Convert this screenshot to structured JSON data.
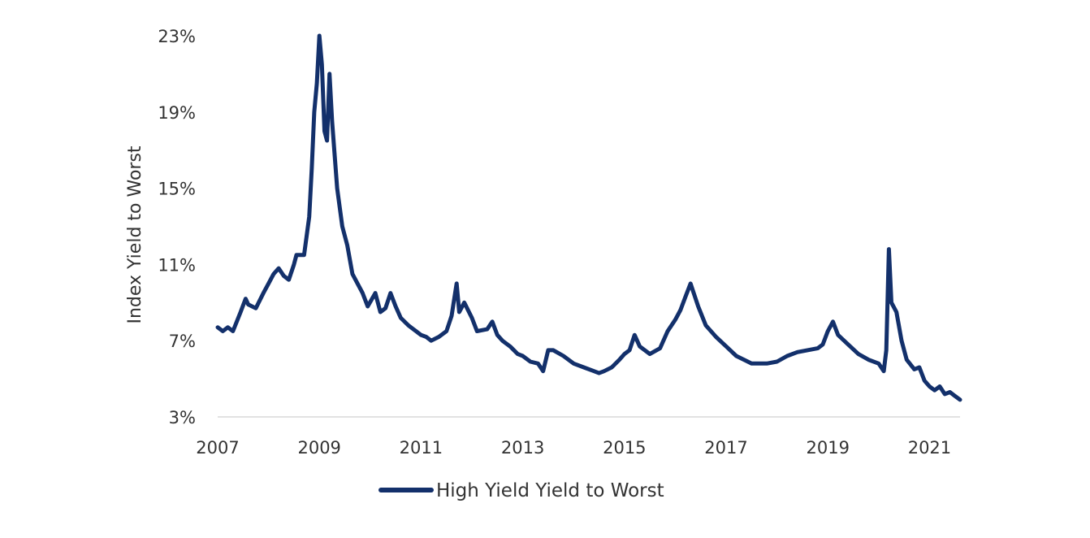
{
  "chart_data": {
    "type": "line",
    "title": "",
    "xlabel": "",
    "ylabel": "Index Yield to Worst",
    "xlim": [
      2007.0,
      2021.6
    ],
    "ylim": [
      3,
      23
    ],
    "x_ticks": [
      2007,
      2009,
      2011,
      2013,
      2015,
      2017,
      2019,
      2021
    ],
    "x_tick_labels": [
      "2007",
      "2009",
      "2011",
      "2013",
      "2015",
      "2017",
      "2019",
      "2021"
    ],
    "y_ticks": [
      3,
      7,
      11,
      15,
      19,
      23
    ],
    "y_tick_labels": [
      "3%",
      "7%",
      "11%",
      "15%",
      "19%",
      "23%"
    ],
    "grid": false,
    "legend_position": "bottom",
    "colors": {
      "series": "#13306b"
    },
    "series": [
      {
        "name": "High Yield Yield to Worst",
        "x": [
          2007.0,
          2007.1,
          2007.2,
          2007.3,
          2007.45,
          2007.55,
          2007.6,
          2007.75,
          2007.9,
          2008.0,
          2008.1,
          2008.2,
          2008.3,
          2008.4,
          2008.5,
          2008.55,
          2008.7,
          2008.8,
          2008.85,
          2008.9,
          2008.95,
          2009.0,
          2009.05,
          2009.1,
          2009.15,
          2009.2,
          2009.25,
          2009.35,
          2009.45,
          2009.55,
          2009.65,
          2009.75,
          2009.85,
          2009.95,
          2010.1,
          2010.2,
          2010.3,
          2010.4,
          2010.5,
          2010.6,
          2010.75,
          2010.9,
          2011.0,
          2011.1,
          2011.2,
          2011.35,
          2011.5,
          2011.6,
          2011.7,
          2011.75,
          2011.85,
          2012.0,
          2012.1,
          2012.3,
          2012.4,
          2012.5,
          2012.6,
          2012.75,
          2012.9,
          2013.0,
          2013.15,
          2013.3,
          2013.4,
          2013.5,
          2013.6,
          2013.8,
          2014.0,
          2014.2,
          2014.4,
          2014.5,
          2014.6,
          2014.75,
          2014.9,
          2015.0,
          2015.1,
          2015.2,
          2015.3,
          2015.5,
          2015.7,
          2015.85,
          2016.0,
          2016.1,
          2016.2,
          2016.3,
          2016.45,
          2016.6,
          2016.8,
          2017.0,
          2017.2,
          2017.5,
          2017.8,
          2018.0,
          2018.2,
          2018.4,
          2018.6,
          2018.8,
          2018.9,
          2019.0,
          2019.1,
          2019.2,
          2019.4,
          2019.6,
          2019.8,
          2020.0,
          2020.1,
          2020.15,
          2020.2,
          2020.25,
          2020.35,
          2020.45,
          2020.55,
          2020.7,
          2020.8,
          2020.9,
          2021.0,
          2021.1,
          2021.2,
          2021.3,
          2021.4,
          2021.5,
          2021.6
        ],
        "values": [
          7.7,
          7.5,
          7.7,
          7.5,
          8.5,
          9.2,
          8.9,
          8.7,
          9.5,
          10.0,
          10.5,
          10.8,
          10.4,
          10.2,
          11.0,
          11.5,
          11.5,
          13.5,
          16.0,
          19.0,
          20.5,
          23.0,
          21.5,
          18.0,
          17.5,
          21.0,
          18.5,
          15.0,
          13.0,
          12.0,
          10.5,
          10.0,
          9.5,
          8.8,
          9.5,
          8.5,
          8.7,
          9.5,
          8.8,
          8.2,
          7.8,
          7.5,
          7.3,
          7.2,
          7.0,
          7.2,
          7.5,
          8.3,
          10.0,
          8.5,
          9.0,
          8.2,
          7.5,
          7.6,
          8.0,
          7.3,
          7.0,
          6.7,
          6.3,
          6.2,
          5.9,
          5.8,
          5.4,
          6.5,
          6.5,
          6.2,
          5.8,
          5.6,
          5.4,
          5.3,
          5.4,
          5.6,
          6.0,
          6.3,
          6.5,
          7.3,
          6.7,
          6.3,
          6.6,
          7.5,
          8.1,
          8.6,
          9.3,
          10.0,
          8.8,
          7.8,
          7.2,
          6.7,
          6.2,
          5.8,
          5.8,
          5.9,
          6.2,
          6.4,
          6.5,
          6.6,
          6.8,
          7.5,
          8.0,
          7.3,
          6.8,
          6.3,
          6.0,
          5.8,
          5.4,
          6.5,
          11.8,
          9.0,
          8.5,
          7.0,
          6.0,
          5.5,
          5.6,
          4.9,
          4.6,
          4.4,
          4.6,
          4.2,
          4.3,
          4.1,
          3.9
        ]
      }
    ]
  }
}
